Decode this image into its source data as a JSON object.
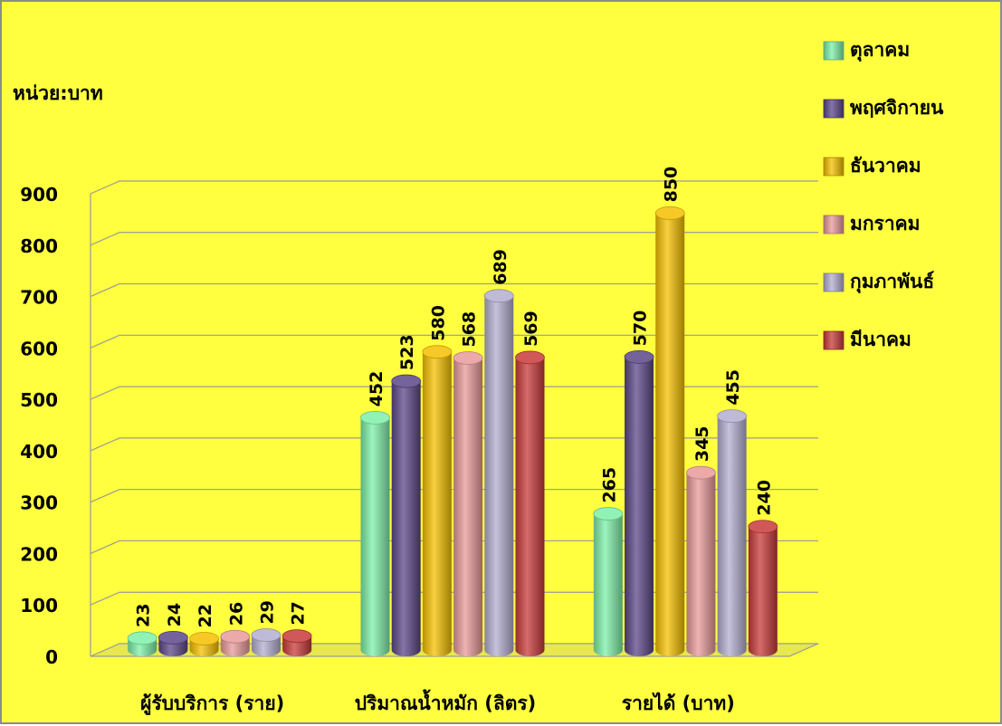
{
  "chart_data": {
    "type": "bar",
    "unit_label": "หน่วย:บาท",
    "categories": [
      "ผู้รับบริการ (ราย)",
      "ปริมาณน้ำหมัก (ลิตร)",
      "รายได้ (บาท)"
    ],
    "series": [
      {
        "name": "ตุลาคม",
        "color": "#7ef0a8",
        "values": [
          23,
          452,
          265
        ]
      },
      {
        "name": "พฤศจิกายน",
        "color": "#5c4788",
        "values": [
          24,
          523,
          570
        ]
      },
      {
        "name": "ธันวาคม",
        "color": "#f5c000",
        "values": [
          22,
          580,
          850
        ]
      },
      {
        "name": "มกราคม",
        "color": "#e89a9a",
        "values": [
          26,
          568,
          345
        ]
      },
      {
        "name": "กุมภาพันธ์",
        "color": "#b4aed0",
        "values": [
          29,
          689,
          455
        ]
      },
      {
        "name": "มีนาคม",
        "color": "#c83a3a",
        "values": [
          27,
          569,
          240
        ]
      }
    ],
    "ylim": [
      0,
      900
    ],
    "yticks": [
      "0",
      "100",
      "200",
      "300",
      "400",
      "500",
      "600",
      "700",
      "800",
      "900"
    ],
    "grid": true,
    "legend": "right",
    "background": "#ffff40"
  }
}
